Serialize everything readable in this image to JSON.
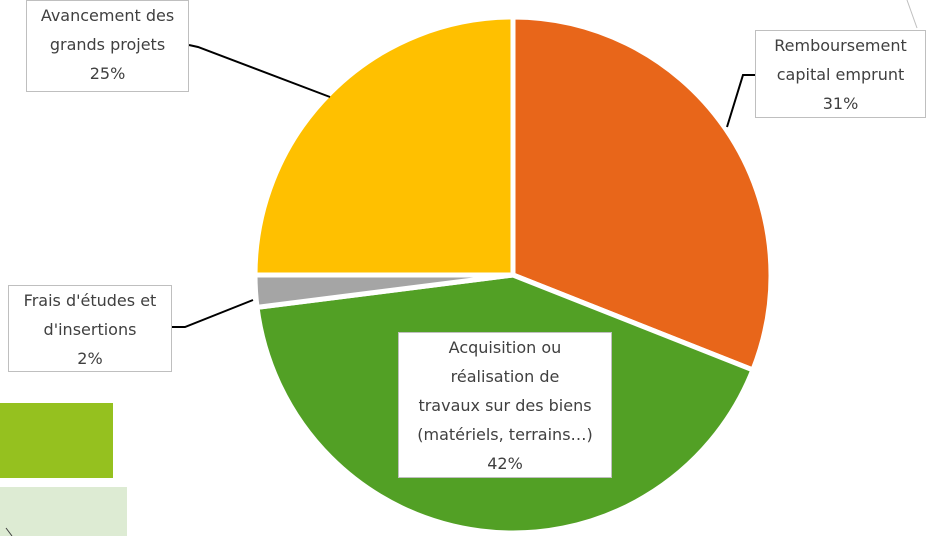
{
  "chart_data": {
    "type": "pie",
    "categories": [
      "Remboursement\ncapital emprunt",
      "Acquisition ou\nréalisation de\ntravaux sur des biens\n(matériels, terrains…)",
      "Frais d'études et\nd'insertions",
      "Avancement des\ngrands projets"
    ],
    "values": [
      31,
      42,
      2,
      25
    ],
    "value_labels": [
      "31%",
      "42%",
      "2%",
      "25%"
    ],
    "colors": [
      "#e8661a",
      "#52a025",
      "#a5a5a5",
      "#ffc000"
    ]
  }
}
